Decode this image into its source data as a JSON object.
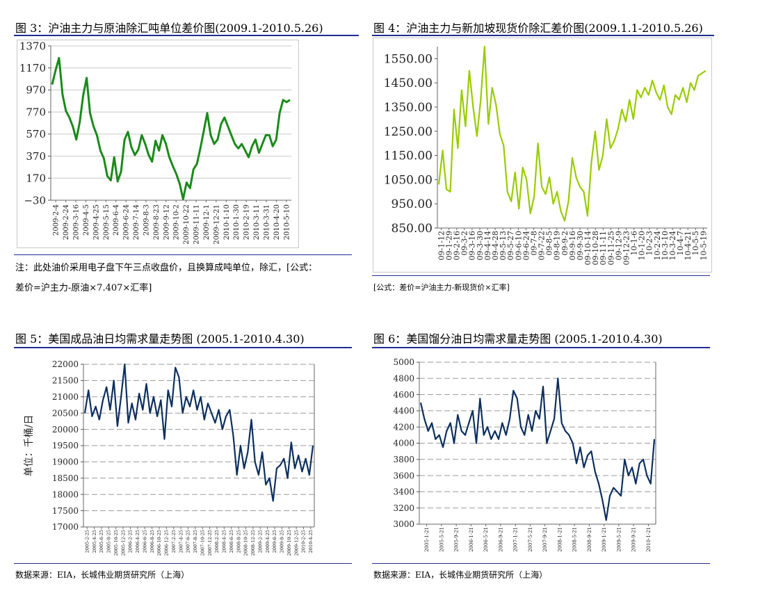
{
  "fig3": {
    "title": "图 3：沪油主力与原油除汇吨单位差价图(2009.1-2010.5.26)",
    "note_line1": "注：此处油价采用电子盘下午三点收盘价，且换算成吨单位，除汇，[公式：",
    "note_line2": "差价=沪主力-原油×7.407×汇率]"
  },
  "fig4": {
    "title": "图 4：沪油主力与新加坡现货价除汇差价图(2009.1.1-2010.5.26)",
    "note": "[公式：差价=沪油主力-新现货价×汇率]"
  },
  "fig5": {
    "title": "图 5：美国成品油日均需求量走势图 (2005.1-2010.4.30)",
    "source": "数据来源：EIA，长城伟业期货研究所（上海）"
  },
  "fig6": {
    "title": "图 6：美国馏分油日均需求量走势图 (2005.1-2010.4.30)",
    "source": "数据来源：EIA，长城伟业期货研究所（上海）"
  },
  "colors": {
    "green": "#1a8a1a",
    "lime": "#99cc00",
    "navy": "#0d2f5e",
    "rule": "#1f2d8f"
  },
  "chart_data": [
    {
      "id": "fig3",
      "type": "line",
      "ylim": [
        -30,
        1370
      ],
      "yticks": [
        "1370",
        "1170",
        "970",
        "770",
        "570",
        "370",
        "170",
        "−30"
      ],
      "ytick_values": [
        1370,
        1170,
        970,
        770,
        570,
        370,
        170,
        -30
      ],
      "xticks": [
        "2009-2-4",
        "2009-2-24",
        "2009-3-16",
        "2009-4-5",
        "2009-4-25",
        "2009-5-15",
        "2009-6-4",
        "2009-6-24",
        "2009-7-14",
        "2009-8-3",
        "2009-8-23",
        "2009-9-12",
        "2009-10-2",
        "2009-10-22",
        "2009-11-11",
        "2009-12-1",
        "2009-12-21",
        "2010-1-10",
        "2010-1-30",
        "2010-2-19",
        "2010-3-11",
        "2010-3-31",
        "2010-4-20",
        "2010-5-10"
      ],
      "x": [
        "2009-1-5",
        "2009-1-12",
        "2009-1-19",
        "2009-2-2",
        "2009-2-9",
        "2009-2-16",
        "2009-2-23",
        "2009-3-2",
        "2009-3-9",
        "2009-3-16",
        "2009-3-23",
        "2009-3-30",
        "2009-4-6",
        "2009-4-13",
        "2009-4-20",
        "2009-4-27",
        "2009-5-4",
        "2009-5-11",
        "2009-5-18",
        "2009-5-25",
        "2009-6-1",
        "2009-6-8",
        "2009-6-15",
        "2009-6-22",
        "2009-6-29",
        "2009-7-6",
        "2009-7-13",
        "2009-7-20",
        "2009-7-27",
        "2009-8-3",
        "2009-8-10",
        "2009-8-17",
        "2009-8-24",
        "2009-8-31",
        "2009-9-7",
        "2009-9-14",
        "2009-9-21",
        "2009-9-28",
        "2009-10-9",
        "2009-10-16",
        "2009-10-23",
        "2009-10-30",
        "2009-11-6",
        "2009-11-13",
        "2009-11-20",
        "2009-11-27",
        "2009-12-4",
        "2009-12-11",
        "2009-12-18",
        "2009-12-25",
        "2010-1-4",
        "2010-1-11",
        "2010-1-18",
        "2010-1-25",
        "2010-2-1",
        "2010-2-8",
        "2010-2-22",
        "2010-3-1",
        "2010-3-8",
        "2010-3-15",
        "2010-3-22",
        "2010-3-29",
        "2010-4-5",
        "2010-4-12",
        "2010-4-19",
        "2010-4-26",
        "2010-5-3",
        "2010-5-10",
        "2010-5-17",
        "2010-5-26"
      ],
      "values": [
        1020,
        1150,
        1260,
        930,
        780,
        720,
        640,
        520,
        680,
        920,
        1080,
        760,
        640,
        560,
        420,
        350,
        190,
        150,
        360,
        140,
        230,
        520,
        590,
        450,
        380,
        430,
        560,
        480,
        380,
        320,
        510,
        420,
        560,
        480,
        360,
        280,
        210,
        120,
        -20,
        130,
        80,
        250,
        300,
        440,
        600,
        760,
        560,
        480,
        520,
        660,
        720,
        640,
        560,
        480,
        440,
        480,
        420,
        360,
        460,
        520,
        400,
        480,
        560,
        560,
        460,
        520,
        760,
        880,
        860,
        880
      ]
    },
    {
      "id": "fig4",
      "type": "line",
      "ylim": [
        850,
        1600
      ],
      "yticks": [
        "1550.00",
        "1450.00",
        "1350.00",
        "1250.00",
        "1150.00",
        "1050.00",
        "950.00",
        "850.00"
      ],
      "ytick_values": [
        1550,
        1450,
        1350,
        1250,
        1150,
        1050,
        950,
        850
      ],
      "xticks": [
        "09-1-12",
        "09-1-29",
        "09-2-16",
        "09-3-2",
        "09-3-16",
        "09-3-30",
        "09-4-14",
        "09-4-28",
        "09-5-13",
        "09-5-27",
        "09-6-10",
        "09-6-24",
        "09-7-8",
        "09-7-22",
        "09-8-5",
        "09-8-19",
        "09-9-2",
        "09-9-16",
        "09-9-30",
        "09-10-14",
        "09-10-28",
        "09-11-11",
        "09-11-25",
        "09-12-9",
        "09-12-23",
        "10-1-6",
        "10-1-20",
        "10-2-3",
        "10-2-24",
        "10-3-10",
        "10-3-24",
        "10-4-7",
        "10-4-21",
        "10-5-5",
        "10-5-19"
      ],
      "x": [
        "09-1-5",
        "09-1-12",
        "09-1-19",
        "09-1-26",
        "09-2-2",
        "09-2-9",
        "09-2-16",
        "09-2-23",
        "09-3-2",
        "09-3-9",
        "09-3-16",
        "09-3-23",
        "09-3-30",
        "09-4-6",
        "09-4-13",
        "09-4-20",
        "09-4-27",
        "09-5-4",
        "09-5-11",
        "09-5-18",
        "09-5-25",
        "09-6-1",
        "09-6-8",
        "09-6-15",
        "09-6-22",
        "09-6-29",
        "09-7-6",
        "09-7-13",
        "09-7-20",
        "09-7-27",
        "09-8-3",
        "09-8-10",
        "09-8-17",
        "09-8-24",
        "09-8-31",
        "09-9-7",
        "09-9-14",
        "09-9-21",
        "09-9-28",
        "09-10-12",
        "09-10-19",
        "09-10-26",
        "09-11-2",
        "09-11-9",
        "09-11-16",
        "09-11-23",
        "09-11-30",
        "09-12-7",
        "09-12-14",
        "09-12-21",
        "09-12-28",
        "10-1-4",
        "10-1-11",
        "10-1-18",
        "10-1-25",
        "10-2-1",
        "10-2-8",
        "10-2-22",
        "10-3-1",
        "10-3-8",
        "10-3-15",
        "10-3-22",
        "10-3-29",
        "10-4-5",
        "10-4-12",
        "10-4-19",
        "10-4-26",
        "10-5-3",
        "10-5-10",
        "10-5-17",
        "10-5-26"
      ],
      "values": [
        1030,
        1170,
        1010,
        1000,
        1340,
        1180,
        1420,
        1270,
        1500,
        1350,
        1230,
        1380,
        1600,
        1280,
        1430,
        1360,
        1240,
        1190,
        1000,
        960,
        1080,
        930,
        1100,
        1050,
        910,
        980,
        1200,
        1020,
        990,
        1060,
        950,
        1000,
        920,
        880,
        960,
        1140,
        1060,
        1020,
        1000,
        900,
        1120,
        1250,
        1090,
        1150,
        1300,
        1180,
        1210,
        1260,
        1340,
        1290,
        1380,
        1300,
        1420,
        1390,
        1430,
        1400,
        1460,
        1410,
        1380,
        1440,
        1350,
        1320,
        1400,
        1380,
        1430,
        1370,
        1450,
        1420,
        1480,
        1490,
        1500
      ]
    },
    {
      "id": "fig5",
      "type": "line",
      "ylabel": "单位：千桶/日",
      "ylim": [
        17000,
        22000
      ],
      "yticks": [
        "22000",
        "21500",
        "21000",
        "20500",
        "20000",
        "19500",
        "19000",
        "18500",
        "18000",
        "17500",
        "17000"
      ],
      "ytick_values": [
        22000,
        21500,
        21000,
        20500,
        20000,
        19500,
        19000,
        18500,
        18000,
        17500,
        17000
      ],
      "xticks": [
        "2005-2-25",
        "2005-4-25",
        "2005-6-25",
        "2005-8-25",
        "2005-10-25",
        "2005-12-25",
        "2006-2-25",
        "2006-4-25",
        "2006-6-25",
        "2006-8-25",
        "2006-10-25",
        "2006-12-25",
        "2007-2-25",
        "2007-4-25",
        "2007-6-25",
        "2007-8-25",
        "2007-10-25",
        "2007-12-25",
        "2008-2-25",
        "2008-4-25",
        "2008-6-25",
        "2008-8-25",
        "2008-10-25",
        "2008-12-25",
        "2009-2-25",
        "2009-4-25",
        "2009-6-25",
        "2009-8-25",
        "2009-10-25",
        "2009-12-25",
        "2010-2-25",
        "2010-4-25"
      ],
      "x": [
        "2005-01",
        "2005-02",
        "2005-03",
        "2005-04",
        "2005-05",
        "2005-06",
        "2005-07",
        "2005-08",
        "2005-09",
        "2005-10",
        "2005-11",
        "2005-12",
        "2006-01",
        "2006-02",
        "2006-03",
        "2006-04",
        "2006-05",
        "2006-06",
        "2006-07",
        "2006-08",
        "2006-09",
        "2006-10",
        "2006-11",
        "2006-12",
        "2007-01",
        "2007-02",
        "2007-03",
        "2007-04",
        "2007-05",
        "2007-06",
        "2007-07",
        "2007-08",
        "2007-09",
        "2007-10",
        "2007-11",
        "2007-12",
        "2008-01",
        "2008-02",
        "2008-03",
        "2008-04",
        "2008-05",
        "2008-06",
        "2008-07",
        "2008-08",
        "2008-09",
        "2008-10",
        "2008-11",
        "2008-12",
        "2009-01",
        "2009-02",
        "2009-03",
        "2009-04",
        "2009-05",
        "2009-06",
        "2009-07",
        "2009-08",
        "2009-09",
        "2009-10",
        "2009-11",
        "2009-12",
        "2010-01",
        "2010-02",
        "2010-03",
        "2010-04"
      ],
      "values": [
        20500,
        21200,
        20400,
        20700,
        20300,
        20900,
        21300,
        20600,
        21500,
        20100,
        21000,
        22000,
        20200,
        20800,
        20300,
        21100,
        20600,
        21400,
        20500,
        21000,
        20400,
        20900,
        19700,
        21200,
        20700,
        21900,
        21600,
        20500,
        21000,
        20700,
        21200,
        20600,
        21000,
        20300,
        20800,
        20500,
        20200,
        20600,
        20000,
        20400,
        20600,
        19800,
        18600,
        19500,
        18800,
        19300,
        20300,
        19000,
        18600,
        19300,
        18300,
        18500,
        17800,
        18800,
        18900,
        19100,
        18500,
        19600,
        18800,
        19200,
        18700,
        19100,
        18600,
        19500
      ]
    },
    {
      "id": "fig6",
      "type": "line",
      "ylim": [
        3000,
        5000
      ],
      "yticks": [
        "5000",
        "4800",
        "4600",
        "4400",
        "4200",
        "4000",
        "3800",
        "3600",
        "3400",
        "3200",
        "3000"
      ],
      "ytick_values": [
        5000,
        4800,
        4600,
        4400,
        4200,
        4000,
        3800,
        3600,
        3400,
        3200,
        3000
      ],
      "xticks": [
        "2005-1-21",
        "2005-5-21",
        "2005-9-21",
        "2006-1-21",
        "2006-5-21",
        "2006-9-21",
        "2007-1-21",
        "2007-5-21",
        "2007-9-21",
        "2008-1-21",
        "2008-5-21",
        "2008-9-21",
        "2009-1-21",
        "2009-5-21",
        "2009-9-21",
        "2010-1-21"
      ],
      "x": [
        "2005-01",
        "2005-02",
        "2005-03",
        "2005-04",
        "2005-05",
        "2005-06",
        "2005-07",
        "2005-08",
        "2005-09",
        "2005-10",
        "2005-11",
        "2005-12",
        "2006-01",
        "2006-02",
        "2006-03",
        "2006-04",
        "2006-05",
        "2006-06",
        "2006-07",
        "2006-08",
        "2006-09",
        "2006-10",
        "2006-11",
        "2006-12",
        "2007-01",
        "2007-02",
        "2007-03",
        "2007-04",
        "2007-05",
        "2007-06",
        "2007-07",
        "2007-08",
        "2007-09",
        "2007-10",
        "2007-11",
        "2007-12",
        "2008-01",
        "2008-02",
        "2008-03",
        "2008-04",
        "2008-05",
        "2008-06",
        "2008-07",
        "2008-08",
        "2008-09",
        "2008-10",
        "2008-11",
        "2008-12",
        "2009-01",
        "2009-02",
        "2009-03",
        "2009-04",
        "2009-05",
        "2009-06",
        "2009-07",
        "2009-08",
        "2009-09",
        "2009-10",
        "2009-11",
        "2009-12",
        "2010-01",
        "2010-02",
        "2010-03",
        "2010-04"
      ],
      "values": [
        4500,
        4300,
        4150,
        4250,
        4050,
        4100,
        3950,
        4150,
        4250,
        4000,
        4350,
        4150,
        4100,
        4250,
        4400,
        4000,
        4550,
        4100,
        4200,
        4050,
        4150,
        4050,
        4250,
        4100,
        4300,
        4650,
        4550,
        4200,
        4100,
        4350,
        4150,
        4400,
        4300,
        4700,
        4000,
        4150,
        4300,
        4800,
        4250,
        4150,
        4100,
        4000,
        3750,
        3950,
        3700,
        3850,
        3900,
        3650,
        3500,
        3300,
        3050,
        3350,
        3450,
        3400,
        3350,
        3800,
        3600,
        3700,
        3500,
        3750,
        3800,
        3600,
        3500,
        4050
      ]
    }
  ]
}
